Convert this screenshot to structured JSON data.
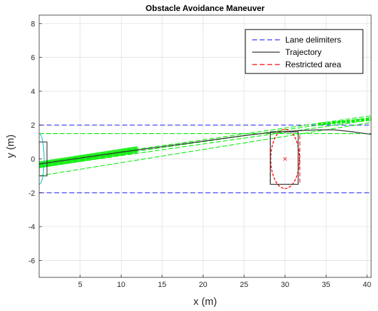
{
  "chart_data": {
    "type": "line",
    "title": "Obstacle Avoidance Maneuver",
    "xlabel": "x (m)",
    "ylabel": "y (m)",
    "xlim": [
      0,
      40.5
    ],
    "ylim": [
      -7,
      8.5
    ],
    "xticks": [
      5,
      10,
      15,
      20,
      25,
      30,
      35,
      40
    ],
    "yticks": [
      -6,
      -4,
      -2,
      0,
      2,
      4,
      6,
      8
    ],
    "grid": true,
    "legend_position": "top-right",
    "series": [
      {
        "name": "Lane delimiters",
        "style": "dashed",
        "color": "#3333ff",
        "lines": [
          {
            "x": [
              0,
              40.5
            ],
            "y": [
              2,
              2
            ]
          },
          {
            "x": [
              0,
              40.5
            ],
            "y": [
              -2,
              -2
            ]
          }
        ]
      },
      {
        "name": "Trajectory",
        "style": "solid",
        "color": "#333333",
        "x": [
          0,
          5,
          10,
          15,
          20,
          25,
          28,
          30,
          32,
          34,
          36,
          38,
          40.5
        ],
        "y": [
          -0.3,
          0.05,
          0.4,
          0.72,
          1.05,
          1.38,
          1.55,
          1.62,
          1.68,
          1.72,
          1.72,
          1.62,
          1.45
        ]
      },
      {
        "name": "Restricted area",
        "style": "dashed",
        "color": "#ff0000",
        "circle": {
          "cx": 30,
          "cy": 0,
          "r": 1.75
        },
        "vertical_lines": [
          {
            "x": 28.2,
            "y": [
              -1.4,
              1.5
            ]
          },
          {
            "x": 31.8,
            "y": [
              -1.4,
              1.5
            ]
          }
        ],
        "center_marker": {
          "x": 30,
          "y": 0
        }
      }
    ],
    "prediction_lines": {
      "color": "#00ee00",
      "lines": [
        {
          "x": [
            0,
            40.5
          ],
          "y": [
            -0.5,
            2.3
          ]
        },
        {
          "x": [
            0,
            40.5
          ],
          "y": [
            -0.38,
            2.45
          ]
        },
        {
          "x": [
            0,
            40.5
          ],
          "y": [
            -0.25,
            2.55
          ]
        },
        {
          "x": [
            0,
            40.5
          ],
          "y": [
            -1.0,
            2.15
          ]
        },
        {
          "x": [
            0,
            40.5
          ],
          "y": [
            1.5,
            1.5
          ]
        }
      ],
      "thick_band": {
        "x": [
          0,
          12
        ],
        "y_low": [
          -0.55,
          0.35
        ],
        "y_high": [
          -0.15,
          0.75
        ]
      }
    },
    "obstacle_box": {
      "x": [
        28.2,
        31.6
      ],
      "y": [
        -1.5,
        1.6
      ],
      "color": "#333333"
    },
    "ego_vehicle": {
      "box": {
        "x": [
          0,
          0.95
        ],
        "y": [
          -1.0,
          1.0
        ],
        "color": "#333333"
      },
      "arc": {
        "cx": 0,
        "cy": 0,
        "rx": 0.6,
        "ry": 1.5,
        "color": "#00bbbb"
      }
    }
  }
}
